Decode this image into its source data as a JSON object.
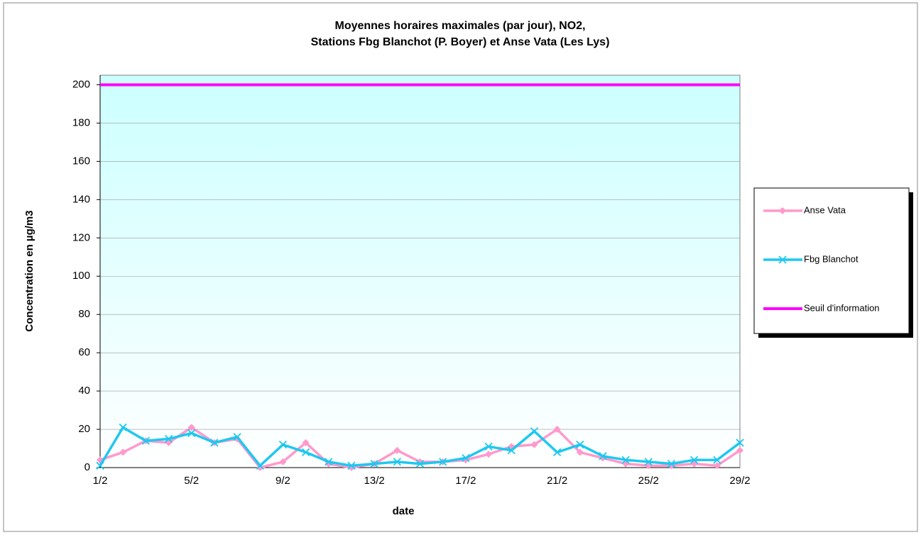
{
  "chart_data": {
    "type": "line",
    "title": "Moyennes horaires maximales (par jour), NO2,",
    "subtitle": "Stations Fbg Blanchot (P. Boyer) et Anse Vata (Les Lys)",
    "x_label": "date",
    "y_label": "Concentration en µg/m3",
    "categories": [
      "1/2",
      null,
      null,
      null,
      "5/2",
      null,
      null,
      null,
      "9/2",
      null,
      null,
      null,
      "13/2",
      null,
      null,
      null,
      "17/2",
      null,
      null,
      null,
      "21/2",
      null,
      null,
      null,
      "25/2",
      null,
      null,
      null,
      "29/2"
    ],
    "series": [
      {
        "name": "Anse Vata",
        "color": "#ff99cc",
        "marker": "diamond",
        "values": [
          4,
          8,
          14,
          13,
          21,
          13,
          15,
          0,
          3,
          13,
          2,
          0,
          2,
          9,
          3,
          3,
          4,
          7,
          11,
          12,
          20,
          8,
          5,
          2,
          1,
          1,
          2,
          1,
          9
        ]
      },
      {
        "name": "Fbg Blanchot",
        "color": "#1ec8f0",
        "marker": "x",
        "values": [
          1,
          21,
          14,
          15,
          18,
          13,
          16,
          1,
          12,
          8,
          3,
          1,
          2,
          3,
          2,
          3,
          5,
          11,
          9,
          19,
          8,
          12,
          6,
          4,
          3,
          2,
          4,
          4,
          13
        ]
      },
      {
        "name": "Seuil d'information",
        "color": "#ff00ff",
        "marker": "none",
        "values": [
          200,
          200,
          200,
          200,
          200,
          200,
          200,
          200,
          200,
          200,
          200,
          200,
          200,
          200,
          200,
          200,
          200,
          200,
          200,
          200,
          200,
          200,
          200,
          200,
          200,
          200,
          200,
          200,
          200
        ]
      }
    ],
    "ylim": [
      0,
      205
    ],
    "yticks": [
      0,
      20,
      40,
      60,
      80,
      100,
      120,
      140,
      160,
      180,
      200
    ],
    "grid": true,
    "legend": "right"
  }
}
